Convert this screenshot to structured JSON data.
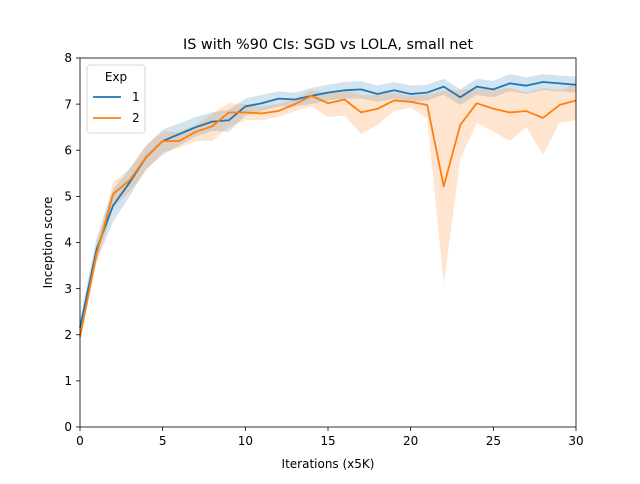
{
  "chart_data": {
    "type": "line",
    "title": "IS with %90 CIs: SGD vs LOLA, small net",
    "xlabel": "Iterations (x5K)",
    "ylabel": "Inception score",
    "xlim": [
      0,
      30
    ],
    "ylim": [
      0,
      8
    ],
    "xticks": [
      "0",
      "5",
      "10",
      "15",
      "20",
      "25",
      "30"
    ],
    "yticks": [
      "0",
      "1",
      "2",
      "3",
      "4",
      "5",
      "6",
      "7",
      "8"
    ],
    "grid": false,
    "legend": {
      "title": "Exp",
      "placement": "top-left"
    },
    "x": [
      0,
      1,
      2,
      3,
      4,
      5,
      6,
      7,
      8,
      9,
      10,
      11,
      12,
      13,
      14,
      15,
      16,
      17,
      18,
      19,
      20,
      21,
      22,
      23,
      24,
      25,
      26,
      27,
      28,
      29,
      30
    ],
    "series": [
      {
        "name": "1",
        "color": "#1f77b4",
        "values": [
          2.15,
          3.85,
          4.8,
          5.3,
          5.85,
          6.2,
          6.35,
          6.5,
          6.62,
          6.65,
          6.95,
          7.02,
          7.12,
          7.1,
          7.18,
          7.25,
          7.3,
          7.32,
          7.22,
          7.3,
          7.22,
          7.25,
          7.38,
          7.15,
          7.38,
          7.32,
          7.45,
          7.4,
          7.48,
          7.45,
          7.42
        ],
        "ci_low": [
          2.0,
          3.6,
          4.45,
          5.0,
          5.6,
          5.9,
          6.1,
          6.3,
          6.42,
          6.4,
          6.75,
          6.85,
          6.95,
          6.95,
          7.0,
          7.08,
          7.12,
          7.12,
          7.05,
          7.12,
          7.05,
          7.08,
          7.2,
          6.98,
          7.2,
          7.15,
          7.28,
          7.22,
          7.3,
          7.28,
          7.25
        ],
        "ci_high": [
          2.35,
          4.1,
          5.15,
          5.6,
          6.1,
          6.45,
          6.58,
          6.72,
          6.82,
          6.88,
          7.12,
          7.2,
          7.28,
          7.25,
          7.35,
          7.42,
          7.48,
          7.5,
          7.4,
          7.48,
          7.4,
          7.42,
          7.55,
          7.32,
          7.55,
          7.5,
          7.65,
          7.58,
          7.65,
          7.62,
          7.6
        ]
      },
      {
        "name": "2",
        "color": "#ff7f0e",
        "values": [
          1.95,
          3.75,
          5.05,
          5.35,
          5.85,
          6.2,
          6.2,
          6.4,
          6.52,
          6.82,
          6.82,
          6.8,
          6.85,
          7.0,
          7.18,
          7.02,
          7.1,
          6.82,
          6.9,
          7.08,
          7.05,
          6.98,
          5.22,
          6.55,
          7.02,
          6.9,
          6.82,
          6.85,
          6.7,
          6.98,
          7.08
        ],
        "ci_low": [
          1.85,
          3.55,
          4.75,
          5.1,
          5.55,
          5.95,
          6.05,
          6.2,
          6.2,
          6.5,
          6.65,
          6.65,
          6.72,
          6.85,
          6.95,
          6.72,
          6.75,
          6.35,
          6.55,
          6.85,
          6.92,
          6.7,
          3.1,
          5.8,
          6.6,
          6.4,
          6.2,
          6.5,
          5.9,
          6.6,
          6.65
        ],
        "ci_high": [
          2.05,
          3.95,
          5.3,
          5.6,
          6.1,
          6.4,
          6.4,
          6.55,
          6.8,
          7.02,
          7.0,
          6.95,
          7.0,
          7.12,
          7.3,
          7.25,
          7.32,
          7.2,
          7.2,
          7.25,
          7.18,
          7.2,
          7.3,
          7.3,
          7.35,
          7.3,
          7.35,
          7.25,
          7.35,
          7.3,
          7.45
        ]
      }
    ]
  }
}
